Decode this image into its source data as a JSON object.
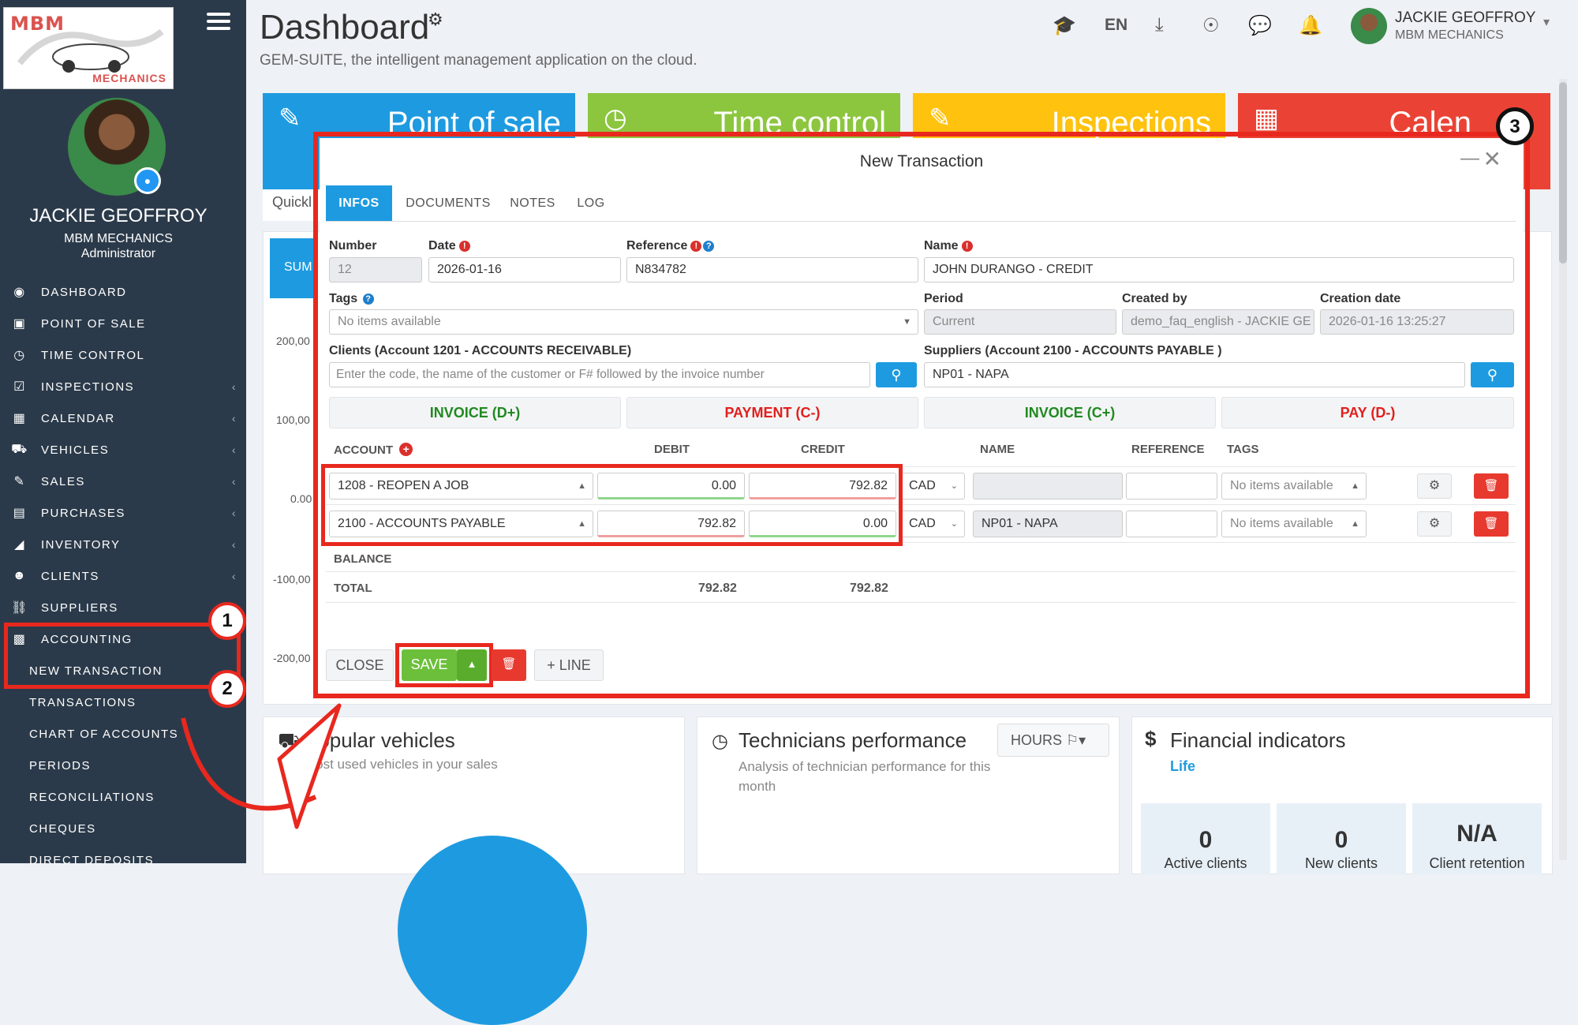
{
  "sidebar": {
    "logo_brand": "MBM",
    "logo_sub": "MECHANICS",
    "profile": {
      "name": "JACKIE GEOFFROY",
      "company": "MBM MECHANICS",
      "role": "Administrator"
    },
    "items": [
      {
        "label": "DASHBOARD",
        "icon": "dashboard-icon"
      },
      {
        "label": "POINT OF SALE",
        "icon": "cash-icon"
      },
      {
        "label": "TIME CONTROL",
        "icon": "clock-icon"
      },
      {
        "label": "INSPECTIONS",
        "icon": "checkbox-icon"
      },
      {
        "label": "CALENDAR",
        "icon": "calendar-icon"
      },
      {
        "label": "VEHICLES",
        "icon": "car-icon"
      },
      {
        "label": "SALES",
        "icon": "edit-icon"
      },
      {
        "label": "PURCHASES",
        "icon": "card-icon"
      },
      {
        "label": "INVENTORY",
        "icon": "cart-icon"
      },
      {
        "label": "CLIENTS",
        "icon": "users-icon"
      },
      {
        "label": "SUPPLIERS",
        "icon": "truck-icon"
      },
      {
        "label": "ACCOUNTING",
        "icon": "chart-icon"
      }
    ],
    "sub_items": [
      "NEW TRANSACTION",
      "TRANSACTIONS",
      "CHART OF ACCOUNTS",
      "PERIODS",
      "RECONCILIATIONS",
      "CHEQUES",
      "DIRECT DEPOSITS"
    ]
  },
  "callouts": [
    "1",
    "2",
    "3"
  ],
  "header": {
    "title": "Dashboard",
    "subtitle": "GEM-SUITE, the intelligent management application on the cloud.",
    "language": "EN",
    "user_name": "JACKIE GEOFFROY",
    "user_company": "MBM MECHANICS"
  },
  "tiles": [
    {
      "label": "Point of sale",
      "color": "#1e9be0"
    },
    {
      "label": "Time control",
      "color": "#8cc63f"
    },
    {
      "label": "Inspections",
      "color": "#ffc20e"
    },
    {
      "label": "Calen",
      "color": "#ea4335"
    }
  ],
  "background": {
    "quick": "Quickl",
    "sum": "SUM",
    "scale": [
      "200,00",
      "100,00",
      "0.00",
      "-100,00",
      "-200,00"
    ]
  },
  "modal": {
    "title": "New Transaction",
    "tabs": [
      "INFOS",
      "DOCUMENTS",
      "NOTES",
      "LOG"
    ],
    "fields": {
      "number_label": "Number",
      "number_value": "12",
      "date_label": "Date",
      "date_value": "2026-01-16",
      "reference_label": "Reference",
      "reference_value": "N834782",
      "name_label": "Name",
      "name_value": "JOHN DURANGO - CREDIT",
      "tags_label": "Tags",
      "tags_value": "No items available",
      "period_label": "Period",
      "period_value": "Current",
      "created_by_label": "Created by",
      "created_by_value": "demo_faq_english - JACKIE GE",
      "creation_date_label": "Creation date",
      "creation_date_value": "2026-01-16 13:25:27",
      "clients_label": "Clients (Account 1201 - ACCOUNTS RECEIVABLE)",
      "clients_placeholder": "Enter the code, the name of the customer or F# followed by the invoice number",
      "suppliers_label": "Suppliers (Account 2100 - ACCOUNTS PAYABLE )",
      "suppliers_value": "NP01 - NAPA"
    },
    "actions": [
      "INVOICE (D+)",
      "PAYMENT (C-)",
      "INVOICE (C+)",
      "PAY (D-)"
    ],
    "columns": {
      "account": "ACCOUNT",
      "debit": "DEBIT",
      "credit": "CREDIT",
      "name": "NAME",
      "reference": "REFERENCE",
      "tags": "TAGS"
    },
    "lines": [
      {
        "account": "1208 - REOPEN A JOB",
        "debit": "0.00",
        "credit": "792.82",
        "currency": "CAD",
        "name": "",
        "reference": "",
        "tags": "No items available"
      },
      {
        "account": "2100 - ACCOUNTS PAYABLE",
        "debit": "792.82",
        "credit": "0.00",
        "currency": "CAD",
        "name": "NP01 - NAPA",
        "reference": "",
        "tags": "No items available"
      }
    ],
    "balance_label": "BALANCE",
    "total_label": "TOTAL",
    "total_debit": "792.82",
    "total_credit": "792.82",
    "footer": {
      "close": "CLOSE",
      "save": "SAVE",
      "add_line": "+ LINE"
    }
  },
  "bottom": {
    "popular_title": "Popular vehicles",
    "popular_sub": "Most used vehicles in your sales",
    "tech_title": "Technicians performance",
    "tech_sub": "Analysis of technician performance for this month",
    "tech_unit": "HOURS",
    "fin_title": "Financial indicators",
    "fin_link": "Life",
    "stats": [
      {
        "value": "0",
        "label": "Active clients"
      },
      {
        "value": "0",
        "label": "New clients"
      },
      {
        "value": "N/A",
        "label": "Client retention"
      }
    ]
  }
}
